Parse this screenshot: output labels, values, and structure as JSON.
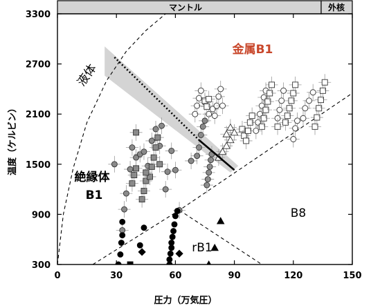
{
  "chart_data": {
    "type": "scatter",
    "xlabel": "圧力（万気圧）",
    "ylabel": "温度（ケルビン）",
    "xlim": [
      0,
      150
    ],
    "ylim": [
      300,
      3300
    ],
    "xticks": [
      "0",
      "30",
      "60",
      "90",
      "120",
      "150"
    ],
    "yticks": [
      "300",
      "900",
      "1500",
      "2100",
      "2700",
      "3300"
    ],
    "top_bands": [
      {
        "label": "マントル",
        "from": 0,
        "to": 134
      },
      {
        "label": "外核",
        "from": 134,
        "to": 150
      }
    ],
    "regions": {
      "liquid": "液体",
      "metal_b1": "金属B1",
      "insulator_b1": "絶縁体\nB1",
      "b8": "B8",
      "rb1": "rB1"
    },
    "colors": {
      "metal_label": "#c8462a",
      "band": "#d4d4d4",
      "gray_marker": "#8a8a8a"
    },
    "boundaries": {
      "liquidus": [
        [
          0,
          300
        ],
        [
          3,
          900
        ],
        [
          8,
          1450
        ],
        [
          15,
          2000
        ],
        [
          25,
          2500
        ],
        [
          35,
          2850
        ],
        [
          45,
          3100
        ],
        [
          55,
          3300
        ]
      ],
      "b1_b8": [
        [
          18,
          300
        ],
        [
          62,
          950
        ],
        [
          150,
          2350
        ]
      ],
      "rb1_b8": [
        [
          62,
          950
        ],
        [
          104,
          300
        ]
      ],
      "melting_dotted": [
        [
          29,
          2780
        ],
        [
          72,
          1790
        ]
      ],
      "melting_solid": [
        [
          72,
          1790
        ],
        [
          90,
          1430
        ]
      ],
      "melting_band_upper": [
        [
          24,
          2910
        ],
        [
          92,
          1480
        ]
      ],
      "melting_band_lower": [
        [
          24,
          2560
        ],
        [
          88,
          1400
        ]
      ]
    },
    "series": [
      {
        "marker": "gray-circle",
        "points": [
          [
            29,
            1500
          ],
          [
            33,
            710
          ],
          [
            34,
            960
          ],
          [
            35,
            1150
          ],
          [
            37,
            1440
          ],
          [
            38,
            1700
          ],
          [
            40,
            1580
          ],
          [
            42,
            1620
          ],
          [
            44,
            1650
          ],
          [
            46,
            1480
          ],
          [
            48,
            1780
          ],
          [
            50,
            1920
          ],
          [
            52,
            1720
          ],
          [
            53,
            1960
          ],
          [
            55,
            1200
          ],
          [
            56,
            1410
          ],
          [
            58,
            1660
          ],
          [
            60,
            1430
          ],
          [
            62,
            950
          ],
          [
            68,
            1540
          ],
          [
            76,
            1250
          ],
          [
            76.5,
            1320
          ],
          [
            77,
            1400
          ],
          [
            77.5,
            1470
          ],
          [
            78,
            1550
          ],
          [
            78.5,
            1620
          ],
          [
            73,
            1850
          ],
          [
            72,
            1700
          ],
          [
            74,
            1950
          ],
          [
            75,
            2020
          ],
          [
            71,
            1600
          ]
        ]
      },
      {
        "marker": "gray-square",
        "points": [
          [
            38,
            1270
          ],
          [
            39,
            1370
          ],
          [
            40,
            1450
          ],
          [
            43,
            1080
          ],
          [
            44,
            1180
          ],
          [
            45,
            1300
          ],
          [
            47,
            1350
          ],
          [
            48,
            1470
          ],
          [
            49,
            1580
          ],
          [
            50,
            1700
          ],
          [
            51,
            1820
          ],
          [
            40,
            1880
          ],
          [
            45,
            1400
          ],
          [
            52,
            1500
          ]
        ]
      },
      {
        "marker": "white-circle",
        "points": [
          [
            70,
            2100
          ],
          [
            71,
            2200
          ],
          [
            72,
            2290
          ],
          [
            73,
            2380
          ],
          [
            75,
            2240
          ],
          [
            77,
            2100
          ],
          [
            79,
            2160
          ],
          [
            80,
            2080
          ],
          [
            81,
            2200
          ],
          [
            82,
            2310
          ],
          [
            83,
            2400
          ],
          [
            84,
            2200
          ],
          [
            101,
            1900
          ],
          [
            102,
            2000
          ],
          [
            103,
            2100
          ],
          [
            104,
            2200
          ],
          [
            105,
            2300
          ],
          [
            106,
            2380
          ],
          [
            112,
            2050
          ],
          [
            113,
            2150
          ],
          [
            114,
            2260
          ],
          [
            115,
            2380
          ],
          [
            120,
            1800
          ],
          [
            121,
            1930
          ],
          [
            122,
            2020
          ],
          [
            125,
            2050
          ],
          [
            126,
            2170
          ],
          [
            128,
            2260
          ],
          [
            130,
            2360
          ]
        ]
      },
      {
        "marker": "white-square",
        "points": [
          [
            75,
            2260
          ],
          [
            76,
            2190
          ],
          [
            77,
            2280
          ],
          [
            94,
            1920
          ],
          [
            95,
            1840
          ],
          [
            96,
            1780
          ],
          [
            97,
            1900
          ],
          [
            98,
            2000
          ],
          [
            99,
            2080
          ],
          [
            104,
            1950
          ],
          [
            105,
            2050
          ],
          [
            106,
            2150
          ],
          [
            107,
            2250
          ],
          [
            108,
            2350
          ],
          [
            109,
            2450
          ],
          [
            112,
            1950
          ],
          [
            116,
            2000
          ],
          [
            117,
            2080
          ],
          [
            118,
            2170
          ],
          [
            119,
            2260
          ],
          [
            120,
            2350
          ],
          [
            121,
            2450
          ],
          [
            131,
            1950
          ],
          [
            132,
            2060
          ],
          [
            133,
            2170
          ],
          [
            134,
            2270
          ],
          [
            135,
            2380
          ],
          [
            136,
            2480
          ]
        ]
      },
      {
        "marker": "white-triangle",
        "points": [
          [
            82,
            1580
          ],
          [
            84,
            1650
          ],
          [
            86,
            1720
          ],
          [
            88,
            1790
          ],
          [
            86,
            1860
          ],
          [
            88,
            1940
          ],
          [
            90,
            1880
          ]
        ]
      },
      {
        "marker": "black-circle",
        "points": [
          [
            31,
            300
          ],
          [
            32,
            420
          ],
          [
            32.5,
            560
          ],
          [
            33,
            650
          ],
          [
            33,
            810
          ],
          [
            42,
            530
          ],
          [
            44,
            740
          ],
          [
            57,
            300
          ],
          [
            57,
            360
          ],
          [
            57.5,
            430
          ],
          [
            58,
            500
          ],
          [
            58,
            560
          ],
          [
            58.5,
            630
          ],
          [
            59,
            700
          ],
          [
            59.5,
            780
          ],
          [
            60,
            880
          ],
          [
            61,
            940
          ]
        ]
      },
      {
        "marker": "black-diamond",
        "points": [
          [
            43,
            450
          ],
          [
            62,
            430
          ]
        ]
      },
      {
        "marker": "black-square",
        "points": [
          [
            37,
            300
          ]
        ]
      },
      {
        "marker": "black-triangle",
        "points": [
          [
            77,
            300
          ],
          [
            80,
            500
          ],
          [
            83,
            820
          ]
        ]
      }
    ]
  }
}
